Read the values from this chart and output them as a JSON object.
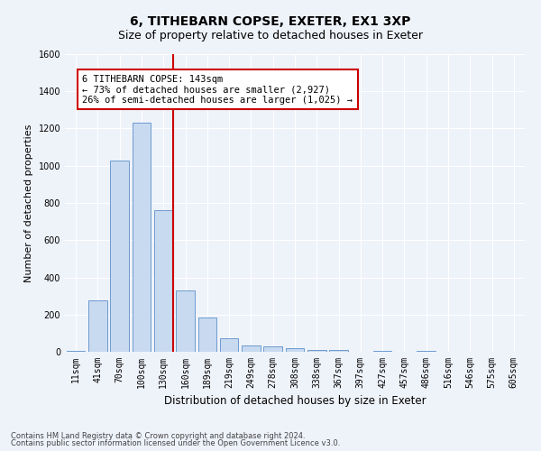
{
  "title": "6, TITHEBARN COPSE, EXETER, EX1 3XP",
  "subtitle": "Size of property relative to detached houses in Exeter",
  "xlabel": "Distribution of detached houses by size in Exeter",
  "ylabel": "Number of detached properties",
  "categories": [
    "11sqm",
    "41sqm",
    "70sqm",
    "100sqm",
    "130sqm",
    "160sqm",
    "189sqm",
    "219sqm",
    "249sqm",
    "278sqm",
    "308sqm",
    "338sqm",
    "367sqm",
    "397sqm",
    "427sqm",
    "457sqm",
    "486sqm",
    "516sqm",
    "546sqm",
    "575sqm",
    "605sqm"
  ],
  "values": [
    5,
    275,
    1030,
    1230,
    760,
    330,
    185,
    75,
    35,
    28,
    18,
    12,
    8,
    0,
    5,
    0,
    5,
    0,
    0,
    0,
    0
  ],
  "bar_color": "#c8daf0",
  "bar_edge_color": "#5b8fc9",
  "vline_color": "#cc0000",
  "annotation_line1": "6 TITHEBARN COPSE: 143sqm",
  "annotation_line2": "← 73% of detached houses are smaller (2,927)",
  "annotation_line3": "26% of semi-detached houses are larger (1,025) →",
  "annotation_box_color": "#ffffff",
  "annotation_box_edge": "#cc0000",
  "ylim": [
    0,
    1600
  ],
  "yticks": [
    0,
    200,
    400,
    600,
    800,
    1000,
    1200,
    1400,
    1600
  ],
  "footer1": "Contains HM Land Registry data © Crown copyright and database right 2024.",
  "footer2": "Contains public sector information licensed under the Open Government Licence v3.0.",
  "bg_color": "#eef2f9",
  "plot_bg_color": "#eef2f9",
  "grid_color": "#ffffff",
  "title_fontsize": 10,
  "subtitle_fontsize": 9,
  "tick_fontsize": 7,
  "xlabel_fontsize": 8.5,
  "ylabel_fontsize": 8,
  "footer_fontsize": 6,
  "annot_fontsize": 7.5
}
